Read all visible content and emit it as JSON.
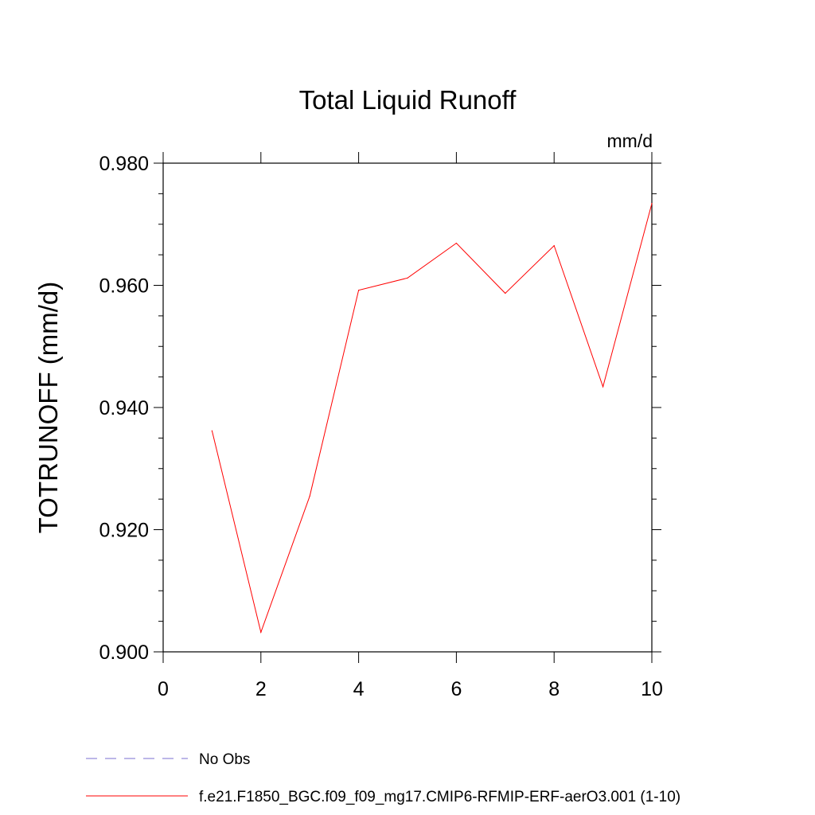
{
  "chart_data": {
    "type": "line",
    "title": "Total Liquid Runoff",
    "units_label": "mm/d",
    "xlabel": "",
    "ylabel": "TOTRUNOFF  (mm/d)",
    "xlim": [
      0,
      10
    ],
    "ylim": [
      0.9,
      0.98
    ],
    "x_ticks": [
      0,
      2,
      4,
      6,
      8,
      10
    ],
    "x_tick_labels": [
      "0",
      "2",
      "4",
      "6",
      "8",
      "10"
    ],
    "y_ticks": [
      0.9,
      0.92,
      0.94,
      0.96,
      0.98
    ],
    "y_tick_labels": [
      "0.900",
      "0.920",
      "0.940",
      "0.960",
      "0.980"
    ],
    "grid": false,
    "legend_position": "bottom-left",
    "series": [
      {
        "name": "f.e21.F1850_BGC.f09_f09_mg17.CMIP6-RFMIP-ERF-aerO3.001 (1-10)",
        "color": "#ff0000",
        "x": [
          1,
          2,
          3,
          4,
          5,
          6,
          7,
          8,
          9,
          10
        ],
        "y": [
          0.9362,
          0.9032,
          0.9255,
          0.9592,
          0.9612,
          0.9669,
          0.9587,
          0.9665,
          0.9434,
          0.9734
        ]
      }
    ],
    "legend": [
      {
        "label": "No Obs",
        "color": "#7b6fd0",
        "style": "dashed"
      },
      {
        "label": "f.e21.F1850_BGC.f09_f09_mg17.CMIP6-RFMIP-ERF-aerO3.001 (1-10)",
        "color": "#ff0000",
        "style": "solid"
      }
    ]
  }
}
